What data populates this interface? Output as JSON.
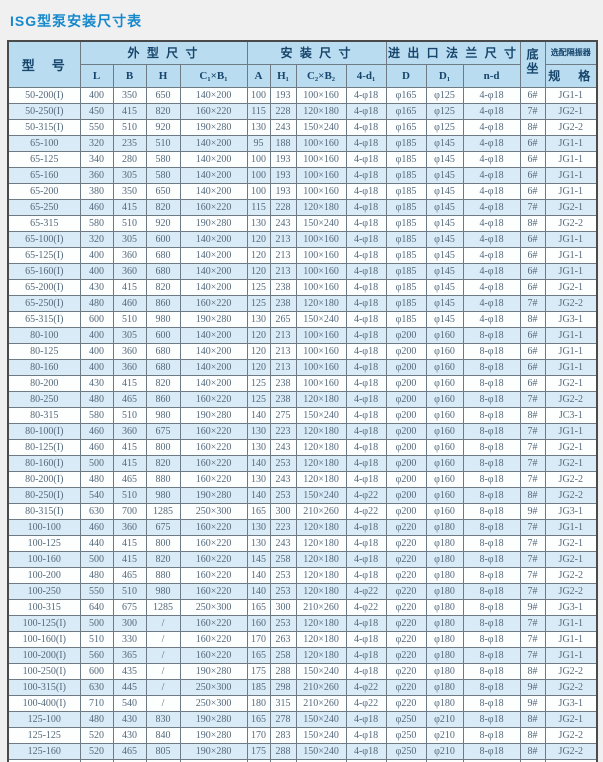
{
  "page": {
    "title": "ISG型泵安装尺寸表"
  },
  "colors": {
    "title_blue": "#1688cc",
    "header_bg": "#b9dcf0",
    "header_text": "#17456b",
    "row_bg": "#fdfefe",
    "row_alt_bg": "#d9ebf7",
    "cell_text": "#55697b",
    "border": "#6e7b85",
    "outer_border": "#4a4a4a",
    "page_bg": "#f0f0f0"
  },
  "table": {
    "group_headers": {
      "model": "型　号",
      "outline": "外 型 尺 寸",
      "install": "安 装 尺 寸",
      "flange": "进 出 口 法 兰 尺 寸",
      "base": "底坐",
      "isolator": "选配隔振器"
    },
    "sub_headers": {
      "L": "L",
      "B": "B",
      "H": "H",
      "C1B1": "C₁×B₁",
      "A": "A",
      "H1": "H₁",
      "C2B2": "C₂×B₂",
      "d1": "4-d₁",
      "D": "D",
      "D1": "D₁",
      "nd": "n-d",
      "spec": "规　格"
    },
    "rows": [
      [
        "50-200(I)",
        "400",
        "350",
        "650",
        "140×200",
        "100",
        "193",
        "100×160",
        "4-φ18",
        "φ165",
        "φ125",
        "4-φ18",
        "6#",
        "JG1-1"
      ],
      [
        "50-250(I)",
        "450",
        "415",
        "820",
        "160×220",
        "115",
        "228",
        "120×180",
        "4-φ18",
        "φ165",
        "φ125",
        "4-φ18",
        "7#",
        "JG2-1"
      ],
      [
        "50-315(I)",
        "550",
        "510",
        "920",
        "190×280",
        "130",
        "243",
        "150×240",
        "4-φ18",
        "φ165",
        "φ125",
        "4-φ18",
        "8#",
        "JG2-2"
      ],
      [
        "65-100",
        "320",
        "235",
        "510",
        "140×200",
        "95",
        "188",
        "100×160",
        "4-φ18",
        "φ185",
        "φ145",
        "4-φ18",
        "6#",
        "JG1-1"
      ],
      [
        "65-125",
        "340",
        "280",
        "580",
        "140×200",
        "100",
        "193",
        "100×160",
        "4-φ18",
        "φ185",
        "φ145",
        "4-φ18",
        "6#",
        "JG1-1"
      ],
      [
        "65-160",
        "360",
        "305",
        "580",
        "140×200",
        "100",
        "193",
        "100×160",
        "4-φ18",
        "φ185",
        "φ145",
        "4-φ18",
        "6#",
        "JG1-1"
      ],
      [
        "65-200",
        "380",
        "350",
        "650",
        "140×200",
        "100",
        "193",
        "100×160",
        "4-φ18",
        "φ185",
        "φ145",
        "4-φ18",
        "6#",
        "JG1-1"
      ],
      [
        "65-250",
        "460",
        "415",
        "820",
        "160×220",
        "115",
        "228",
        "120×180",
        "4-φ18",
        "φ185",
        "φ145",
        "4-φ18",
        "7#",
        "JG2-1"
      ],
      [
        "65-315",
        "580",
        "510",
        "920",
        "190×280",
        "130",
        "243",
        "150×240",
        "4-φ18",
        "φ185",
        "φ145",
        "4-φ18",
        "8#",
        "JG2-2"
      ],
      [
        "65-100(I)",
        "320",
        "305",
        "600",
        "140×200",
        "120",
        "213",
        "100×160",
        "4-φ18",
        "φ185",
        "φ145",
        "4-φ18",
        "6#",
        "JG1-1"
      ],
      [
        "65-125(I)",
        "400",
        "360",
        "680",
        "140×200",
        "120",
        "213",
        "100×160",
        "4-φ18",
        "φ185",
        "φ145",
        "4-φ18",
        "6#",
        "JG1-1"
      ],
      [
        "65-160(I)",
        "400",
        "360",
        "680",
        "140×200",
        "120",
        "213",
        "100×160",
        "4-φ18",
        "φ185",
        "φ145",
        "4-φ18",
        "6#",
        "JG1-1"
      ],
      [
        "65-200(I)",
        "430",
        "415",
        "820",
        "140×200",
        "125",
        "238",
        "100×160",
        "4-φ18",
        "φ185",
        "φ145",
        "4-φ18",
        "6#",
        "JG2-1"
      ],
      [
        "65-250(I)",
        "480",
        "460",
        "860",
        "160×220",
        "125",
        "238",
        "120×180",
        "4-φ18",
        "φ185",
        "φ145",
        "4-φ18",
        "7#",
        "JG2-2"
      ],
      [
        "65-315(I)",
        "600",
        "510",
        "980",
        "190×280",
        "130",
        "265",
        "150×240",
        "4-φ18",
        "φ185",
        "φ145",
        "4-φ18",
        "8#",
        "JG3-1"
      ],
      [
        "80-100",
        "400",
        "305",
        "600",
        "140×200",
        "120",
        "213",
        "100×160",
        "4-φ18",
        "φ200",
        "φ160",
        "8-φ18",
        "6#",
        "JG1-1"
      ],
      [
        "80-125",
        "400",
        "360",
        "680",
        "140×200",
        "120",
        "213",
        "100×160",
        "4-φ18",
        "φ200",
        "φ160",
        "8-φ18",
        "6#",
        "JG1-1"
      ],
      [
        "80-160",
        "400",
        "360",
        "680",
        "140×200",
        "120",
        "213",
        "100×160",
        "4-φ18",
        "φ200",
        "φ160",
        "8-φ18",
        "6#",
        "JG1-1"
      ],
      [
        "80-200",
        "430",
        "415",
        "820",
        "140×200",
        "125",
        "238",
        "100×160",
        "4-φ18",
        "φ200",
        "φ160",
        "8-φ18",
        "6#",
        "JG2-1"
      ],
      [
        "80-250",
        "480",
        "465",
        "860",
        "160×220",
        "125",
        "238",
        "120×180",
        "4-φ18",
        "φ200",
        "φ160",
        "8-φ18",
        "7#",
        "JG2-2"
      ],
      [
        "80-315",
        "580",
        "510",
        "980",
        "190×280",
        "140",
        "275",
        "150×240",
        "4-φ18",
        "φ200",
        "φ160",
        "8-φ18",
        "8#",
        "JC3-1"
      ],
      [
        "80-100(I)",
        "460",
        "360",
        "675",
        "160×220",
        "130",
        "223",
        "120×180",
        "4-φ18",
        "φ200",
        "φ160",
        "8-φ18",
        "7#",
        "JG1-1"
      ],
      [
        "80-125(I)",
        "460",
        "415",
        "800",
        "160×220",
        "130",
        "243",
        "120×180",
        "4-φ18",
        "φ200",
        "φ160",
        "8-φ18",
        "7#",
        "JG2-1"
      ],
      [
        "80-160(I)",
        "500",
        "415",
        "820",
        "160×220",
        "140",
        "253",
        "120×180",
        "4-φ18",
        "φ200",
        "φ160",
        "8-φ18",
        "7#",
        "JG2-1"
      ],
      [
        "80-200(I)",
        "480",
        "465",
        "880",
        "160×220",
        "130",
        "243",
        "120×180",
        "4-φ18",
        "φ200",
        "φ160",
        "8-φ18",
        "7#",
        "JG2-2"
      ],
      [
        "80-250(I)",
        "540",
        "510",
        "980",
        "190×280",
        "140",
        "253",
        "150×240",
        "4-φ22",
        "φ200",
        "φ160",
        "8-φ18",
        "8#",
        "JG2-2"
      ],
      [
        "80-315(I)",
        "630",
        "700",
        "1285",
        "250×300",
        "165",
        "300",
        "210×260",
        "4-φ22",
        "φ200",
        "φ160",
        "8-φ18",
        "9#",
        "JG3-1"
      ],
      [
        "100-100",
        "460",
        "360",
        "675",
        "160×220",
        "130",
        "223",
        "120×180",
        "4-φ18",
        "φ220",
        "φ180",
        "8-φ18",
        "7#",
        "JG1-1"
      ],
      [
        "100-125",
        "440",
        "415",
        "800",
        "160×220",
        "130",
        "243",
        "120×180",
        "4-φ18",
        "φ220",
        "φ180",
        "8-φ18",
        "7#",
        "JG2-1"
      ],
      [
        "100-160",
        "500",
        "415",
        "820",
        "160×220",
        "145",
        "258",
        "120×180",
        "4-φ18",
        "φ220",
        "φ180",
        "8-φ18",
        "7#",
        "JG2-1"
      ],
      [
        "100-200",
        "480",
        "465",
        "880",
        "160×220",
        "140",
        "253",
        "120×180",
        "4-φ18",
        "φ220",
        "φ180",
        "8-φ18",
        "7#",
        "JG2-2"
      ],
      [
        "100-250",
        "550",
        "510",
        "980",
        "160×220",
        "140",
        "253",
        "120×180",
        "4-φ22",
        "φ220",
        "φ180",
        "8-φ18",
        "7#",
        "JG2-2"
      ],
      [
        "100-315",
        "640",
        "675",
        "1285",
        "250×300",
        "165",
        "300",
        "210×260",
        "4-φ22",
        "φ220",
        "φ180",
        "8-φ18",
        "9#",
        "JG3-1"
      ],
      [
        "100-125(I)",
        "500",
        "300",
        "/",
        "160×220",
        "160",
        "253",
        "120×180",
        "4-φ18",
        "φ220",
        "φ180",
        "8-φ18",
        "7#",
        "JG1-1"
      ],
      [
        "100-160(I)",
        "510",
        "330",
        "/",
        "160×220",
        "170",
        "263",
        "120×180",
        "4-φ18",
        "φ220",
        "φ180",
        "8-φ18",
        "7#",
        "JG1-1"
      ],
      [
        "100-200(I)",
        "560",
        "365",
        "/",
        "160×220",
        "165",
        "258",
        "120×180",
        "4-φ18",
        "φ220",
        "φ180",
        "8-φ18",
        "7#",
        "JG1-1"
      ],
      [
        "100-250(I)",
        "600",
        "435",
        "/",
        "190×280",
        "175",
        "288",
        "150×240",
        "4-φ18",
        "φ220",
        "φ180",
        "8-φ18",
        "8#",
        "JG2-2"
      ],
      [
        "100-315(I)",
        "630",
        "445",
        "/",
        "250×300",
        "185",
        "298",
        "210×260",
        "4-φ22",
        "φ220",
        "φ180",
        "8-φ18",
        "9#",
        "JG2-2"
      ],
      [
        "100-400(I)",
        "710",
        "540",
        "/",
        "250×300",
        "180",
        "315",
        "210×260",
        "4-φ22",
        "φ220",
        "φ180",
        "8-φ18",
        "9#",
        "JG3-1"
      ],
      [
        "125-100",
        "480",
        "430",
        "830",
        "190×280",
        "165",
        "278",
        "150×240",
        "4-φ18",
        "φ250",
        "φ210",
        "8-φ18",
        "8#",
        "JG2-1"
      ],
      [
        "125-125",
        "520",
        "430",
        "840",
        "190×280",
        "170",
        "283",
        "150×240",
        "4-φ18",
        "φ250",
        "φ210",
        "8-φ18",
        "8#",
        "JG2-2"
      ],
      [
        "125-160",
        "520",
        "465",
        "805",
        "190×280",
        "175",
        "288",
        "150×240",
        "4-φ18",
        "φ250",
        "φ210",
        "8-φ18",
        "8#",
        "JG2-2"
      ],
      [
        "125-200",
        "570",
        "510",
        "970",
        "250×300",
        "175",
        "288",
        "210×260",
        "4-φ22",
        "φ250",
        "φ210",
        "8-φ18",
        "9#",
        "JG2-2"
      ],
      [
        "125-250",
        "580",
        "660",
        "1120",
        "200×265",
        "170",
        "305",
        "210×260",
        "4-φ22",
        "φ250",
        "φ210",
        "8-φ18",
        "9#",
        "JG3-1"
      ]
    ]
  }
}
